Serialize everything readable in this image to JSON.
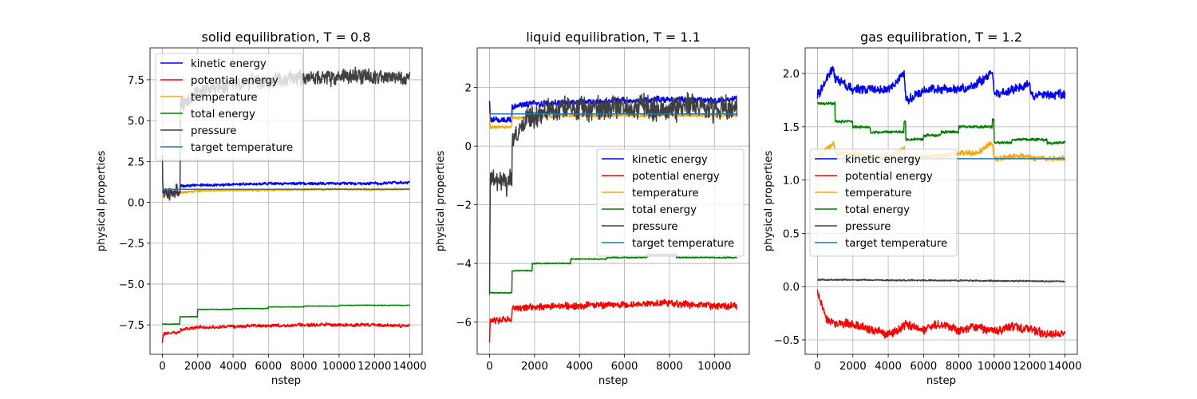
{
  "figure": {
    "series_colors": {
      "kinetic energy": "#0000ff",
      "potential energy": "#ff0000",
      "temperature": "#ffa500",
      "total energy": "#008000",
      "pressure": "#404040",
      "target temperature": "#1f77b4"
    }
  },
  "chart_data": [
    {
      "type": "line",
      "title": "solid equilibration, T = 0.8",
      "xlabel": "nstep",
      "ylabel": "physical properties",
      "xlim": [
        -700,
        14700
      ],
      "ylim": [
        -9.3,
        9.45
      ],
      "xticks": [
        0,
        2000,
        4000,
        6000,
        8000,
        10000,
        12000,
        14000
      ],
      "xtick_labels": [
        "0",
        "2000",
        "4000",
        "6000",
        "8000",
        "10000",
        "12000",
        "14000"
      ],
      "yticks": [
        -7.5,
        -5.0,
        -2.5,
        0.0,
        2.5,
        5.0,
        7.5
      ],
      "ytick_labels": [
        "−7.5",
        "−5.0",
        "−2.5",
        "0.0",
        "2.5",
        "5.0",
        "7.5"
      ],
      "grid": true,
      "legend_position": "upper-left",
      "series": [
        {
          "name": "kinetic energy",
          "style": "noisy",
          "x": [
            0,
            1000,
            1001,
            2000,
            4000,
            6000,
            8000,
            10000,
            12000,
            14000
          ],
          "y": [
            0.6,
            0.6,
            1.0,
            1.05,
            1.1,
            1.15,
            1.15,
            1.15,
            1.15,
            1.2
          ],
          "amp": 0.1,
          "from": 0
        },
        {
          "name": "potential energy",
          "style": "noisy",
          "x": [
            0,
            50,
            1000,
            1001,
            2000,
            4000,
            6000,
            8000,
            10000,
            12000,
            14000
          ],
          "y": [
            -8.6,
            -8.0,
            -8.0,
            -7.8,
            -7.65,
            -7.6,
            -7.55,
            -7.5,
            -7.5,
            -7.5,
            -7.55
          ],
          "amp": 0.12,
          "from": 0
        },
        {
          "name": "temperature",
          "style": "noisy",
          "x": [
            0,
            1000,
            1001,
            2000,
            4000,
            6000,
            8000,
            10000,
            12000,
            14000
          ],
          "y": [
            0.4,
            0.5,
            0.6,
            0.7,
            0.75,
            0.75,
            0.8,
            0.8,
            0.8,
            0.8
          ],
          "amp": 0.08,
          "from": 0
        },
        {
          "name": "total energy",
          "style": "step",
          "x": [
            0,
            1000,
            2000,
            4000,
            6000,
            8000,
            10000,
            12000,
            14000
          ],
          "y": [
            -7.45,
            -7.0,
            -6.55,
            -6.5,
            -6.4,
            -6.35,
            -6.3,
            -6.3,
            -6.3
          ],
          "amp": 0.02,
          "from": 0
        },
        {
          "name": "pressure",
          "style": "noisy",
          "x": [
            0,
            30,
            1000,
            1001,
            2000,
            4000,
            6000,
            8000,
            10000,
            12000,
            14000
          ],
          "y": [
            2.6,
            0.6,
            0.6,
            6.0,
            6.8,
            7.2,
            7.4,
            7.6,
            7.7,
            7.7,
            7.6
          ],
          "amp": 0.55,
          "from": 0
        },
        {
          "name": "target temperature",
          "style": "step",
          "x": [
            0,
            14000
          ],
          "y": [
            0.8,
            0.8
          ],
          "amp": 0,
          "from": 0
        }
      ]
    },
    {
      "type": "line",
      "title": "liquid equilibration, T = 1.1",
      "xlabel": "nstep",
      "ylabel": "physical properties",
      "xlim": [
        -550,
        11550
      ],
      "ylim": [
        -7.1,
        3.35
      ],
      "xticks": [
        0,
        2000,
        4000,
        6000,
        8000,
        10000
      ],
      "xtick_labels": [
        "0",
        "2000",
        "4000",
        "6000",
        "8000",
        "10000"
      ],
      "yticks": [
        -6,
        -4,
        -2,
        0,
        2
      ],
      "ytick_labels": [
        "−6",
        "−4",
        "−2",
        "0",
        "2"
      ],
      "grid": true,
      "legend_position": "center-right",
      "series": [
        {
          "name": "kinetic energy",
          "style": "noisy",
          "x": [
            0,
            30,
            1000,
            1001,
            2000,
            4000,
            6000,
            8000,
            10000,
            11000
          ],
          "y": [
            1.6,
            0.9,
            0.9,
            1.35,
            1.45,
            1.5,
            1.55,
            1.6,
            1.55,
            1.6
          ],
          "amp": 0.12,
          "from": 0
        },
        {
          "name": "potential energy",
          "style": "noisy",
          "x": [
            0,
            30,
            1000,
            1001,
            2000,
            4000,
            6000,
            8000,
            10000,
            11000
          ],
          "y": [
            -6.6,
            -5.95,
            -5.9,
            -5.55,
            -5.5,
            -5.45,
            -5.4,
            -5.35,
            -5.45,
            -5.45
          ],
          "amp": 0.14,
          "from": 0
        },
        {
          "name": "temperature",
          "style": "noisy",
          "x": [
            0,
            30,
            1000,
            1001,
            2000,
            4000,
            6000,
            8000,
            10000,
            11000
          ],
          "y": [
            1.1,
            0.65,
            0.65,
            0.95,
            1.0,
            1.05,
            1.05,
            1.05,
            1.05,
            1.05
          ],
          "amp": 0.06,
          "from": 0
        },
        {
          "name": "total energy",
          "style": "step",
          "x": [
            0,
            1000,
            1900,
            3600,
            5200,
            7000,
            8300,
            11000
          ],
          "y": [
            -5.0,
            -4.25,
            -4.0,
            -3.85,
            -3.8,
            -3.7,
            -3.8,
            -3.8
          ],
          "amp": 0.02,
          "from": 0
        },
        {
          "name": "pressure",
          "style": "noisy",
          "x": [
            0,
            30,
            800,
            1000,
            1001,
            1800,
            3000,
            5000,
            7000,
            9000,
            11000
          ],
          "y": [
            -5.0,
            -1.2,
            -1.3,
            -1.0,
            0.3,
            1.0,
            1.25,
            1.3,
            1.3,
            1.3,
            1.3
          ],
          "amp": 0.5,
          "from": 0
        },
        {
          "name": "target temperature",
          "style": "step",
          "x": [
            0,
            11000
          ],
          "y": [
            1.1,
            1.1
          ],
          "amp": 0,
          "from": 0
        }
      ]
    },
    {
      "type": "line",
      "title": "gas equilibration, T = 1.2",
      "xlabel": "nstep",
      "ylabel": "physical properties",
      "xlim": [
        -700,
        14700
      ],
      "ylim": [
        -0.635,
        2.24
      ],
      "xticks": [
        0,
        2000,
        4000,
        6000,
        8000,
        10000,
        12000,
        14000
      ],
      "xtick_labels": [
        "0",
        "2000",
        "4000",
        "6000",
        "8000",
        "10000",
        "12000",
        "14000"
      ],
      "yticks": [
        -0.5,
        0.0,
        0.5,
        1.0,
        1.5,
        2.0
      ],
      "ytick_labels": [
        "−0.5",
        "0.0",
        "0.5",
        "1.0",
        "1.5",
        "2.0"
      ],
      "grid": true,
      "legend_position": "center-left",
      "series": [
        {
          "name": "kinetic energy",
          "style": "noisy",
          "x": [
            0,
            900,
            1000,
            2000,
            3000,
            4000,
            4900,
            5000,
            5100,
            6000,
            7000,
            8000,
            9000,
            9900,
            10000,
            10100,
            11000,
            12000,
            12100,
            13000,
            14000
          ],
          "y": [
            1.8,
            2.05,
            1.95,
            1.85,
            1.85,
            1.85,
            2.0,
            1.75,
            1.75,
            1.85,
            1.85,
            1.85,
            1.9,
            2.0,
            1.8,
            1.8,
            1.85,
            1.9,
            1.8,
            1.8,
            1.8
          ],
          "amp": 0.05,
          "from": 0
        },
        {
          "name": "potential energy",
          "style": "noisy",
          "x": [
            0,
            500,
            1000,
            2000,
            3000,
            4000,
            5000,
            6000,
            7000,
            8000,
            9000,
            10000,
            11000,
            12000,
            13000,
            14000
          ],
          "y": [
            -0.05,
            -0.3,
            -0.35,
            -0.35,
            -0.4,
            -0.45,
            -0.35,
            -0.4,
            -0.35,
            -0.4,
            -0.38,
            -0.42,
            -0.38,
            -0.4,
            -0.45,
            -0.44
          ],
          "amp": 0.05,
          "from": 0
        },
        {
          "name": "temperature",
          "style": "noisy",
          "x": [
            0,
            900,
            1000,
            2000,
            3000,
            4000,
            4900,
            5000,
            5100,
            6000,
            7000,
            8000,
            9000,
            9900,
            10000,
            10100,
            11000,
            12000,
            12100,
            13000,
            14000
          ],
          "y": [
            1.2,
            1.35,
            1.25,
            1.25,
            1.22,
            1.22,
            1.3,
            1.2,
            1.2,
            1.22,
            1.22,
            1.25,
            1.25,
            1.35,
            1.2,
            1.2,
            1.22,
            1.22,
            1.2,
            1.2,
            1.2
          ],
          "amp": 0.03,
          "from": 0
        },
        {
          "name": "total energy",
          "style": "step",
          "x": [
            0,
            1000,
            2000,
            3000,
            4000,
            4900,
            5000,
            6000,
            7000,
            8000,
            9000,
            9900,
            10000,
            11000,
            12000,
            13000,
            14000
          ],
          "y": [
            1.72,
            1.55,
            1.5,
            1.45,
            1.45,
            1.55,
            1.38,
            1.42,
            1.45,
            1.5,
            1.5,
            1.57,
            1.35,
            1.38,
            1.38,
            1.35,
            1.38
          ],
          "amp": 0.015,
          "from": 0
        },
        {
          "name": "pressure",
          "style": "noisy",
          "x": [
            0,
            14000
          ],
          "y": [
            0.065,
            0.05
          ],
          "amp": 0.008,
          "from": 0
        },
        {
          "name": "target temperature",
          "style": "step",
          "x": [
            0,
            14000
          ],
          "y": [
            1.2,
            1.2
          ],
          "amp": 0,
          "from": 0
        }
      ]
    }
  ]
}
